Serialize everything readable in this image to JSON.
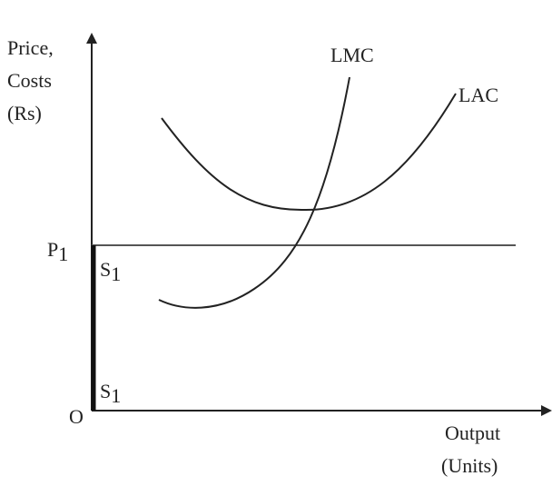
{
  "y_axis_label": [
    "Price,",
    "Costs",
    "(Rs)"
  ],
  "x_axis_label": [
    "Output",
    "(Units)"
  ],
  "origin": "O",
  "price_label": {
    "text": "P",
    "sub": "1"
  },
  "curves": {
    "lmc": "LMC",
    "lac": "LAC"
  },
  "supply_labels": [
    {
      "text": "S",
      "sub": "1"
    },
    {
      "text": "S",
      "sub": "1"
    }
  ]
}
